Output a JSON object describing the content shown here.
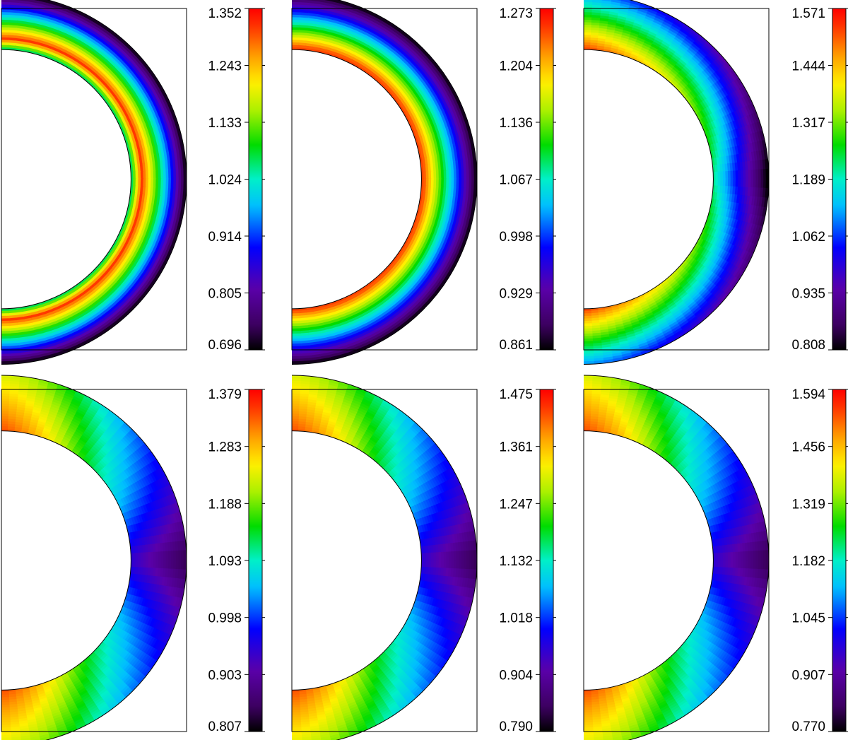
{
  "chart_data": [
    {
      "type": "heatmap",
      "shape": "spherical-shell-half-section",
      "colormap": "rainbow",
      "pattern": "radial",
      "hot_side": "inner",
      "hot_offset": 0.2,
      "colorbar": {
        "min": 0.696,
        "max": 1.352,
        "ticks": [
          "1.352",
          "1.243",
          "1.133",
          "1.024",
          "0.914",
          "0.805",
          "0.696"
        ]
      }
    },
    {
      "type": "heatmap",
      "shape": "spherical-shell-half-section",
      "colormap": "rainbow",
      "pattern": "radial",
      "hot_side": "inner",
      "hot_offset": 0.03,
      "colorbar": {
        "min": 0.861,
        "max": 1.273,
        "ticks": [
          "1.273",
          "1.204",
          "1.136",
          "1.067",
          "0.998",
          "0.929",
          "0.861"
        ]
      }
    },
    {
      "type": "heatmap",
      "shape": "spherical-shell-half-section",
      "colormap": "rainbow",
      "pattern": "polar-to-equator",
      "hot_side": "inner-polar",
      "colorbar": {
        "min": 0.808,
        "max": 1.571,
        "ticks": [
          "1.571",
          "1.444",
          "1.317",
          "1.189",
          "1.062",
          "0.935",
          "0.808"
        ]
      }
    },
    {
      "type": "heatmap",
      "shape": "spherical-shell-half-section",
      "colormap": "rainbow",
      "pattern": "polar-to-equator",
      "hot_side": "polar",
      "colorbar": {
        "min": 0.807,
        "max": 1.379,
        "ticks": [
          "1.379",
          "1.283",
          "1.188",
          "1.093",
          "0.998",
          "0.903",
          "0.807"
        ]
      }
    },
    {
      "type": "heatmap",
      "shape": "spherical-shell-half-section",
      "colormap": "rainbow",
      "pattern": "polar-to-equator",
      "hot_side": "polar",
      "colorbar": {
        "min": 0.79,
        "max": 1.475,
        "ticks": [
          "1.475",
          "1.361",
          "1.247",
          "1.132",
          "1.018",
          "0.904",
          "0.790"
        ]
      }
    },
    {
      "type": "heatmap",
      "shape": "spherical-shell-half-section",
      "colormap": "rainbow",
      "pattern": "polar-to-equator",
      "hot_side": "polar",
      "colorbar": {
        "min": 0.77,
        "max": 1.594,
        "ticks": [
          "1.594",
          "1.456",
          "1.319",
          "1.182",
          "1.045",
          "0.907",
          "0.770"
        ]
      }
    }
  ]
}
